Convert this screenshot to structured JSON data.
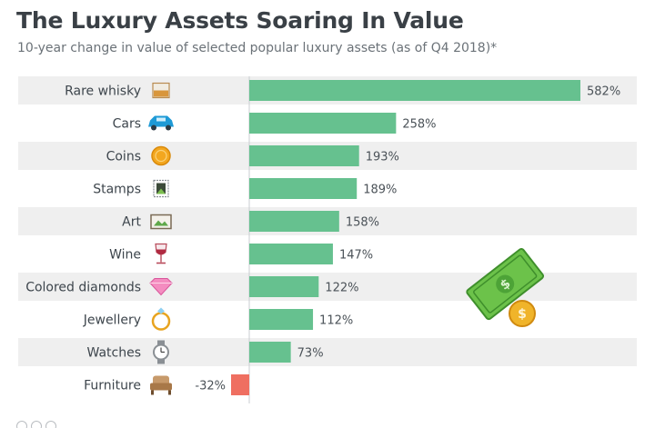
{
  "chart_data": {
    "type": "bar",
    "orientation": "horizontal",
    "title": "The Luxury Assets Soaring In Value",
    "subtitle": "10-year change in value of selected popular luxury assets (as of Q4 2018)*",
    "categories": [
      "Rare whisky",
      "Cars",
      "Coins",
      "Stamps",
      "Art",
      "Wine",
      "Colored diamonds",
      "Jewellery",
      "Watches",
      "Furniture"
    ],
    "icons": [
      "whisky-glass-icon",
      "car-icon",
      "coin-icon",
      "stamp-icon",
      "picture-frame-icon",
      "wine-glass-icon",
      "diamond-icon",
      "ring-icon",
      "watch-icon",
      "armchair-icon"
    ],
    "values": [
      582,
      258,
      193,
      189,
      158,
      147,
      122,
      112,
      73,
      -32
    ],
    "value_labels": [
      "582%",
      "258%",
      "193%",
      "189%",
      "158%",
      "147%",
      "122%",
      "112%",
      "73%",
      "-32%"
    ],
    "unit": "%",
    "xlim": [
      -32,
      582
    ],
    "colors": {
      "positive": "#66c18f",
      "negative": "#ef6f61",
      "band": "#efefef"
    }
  }
}
